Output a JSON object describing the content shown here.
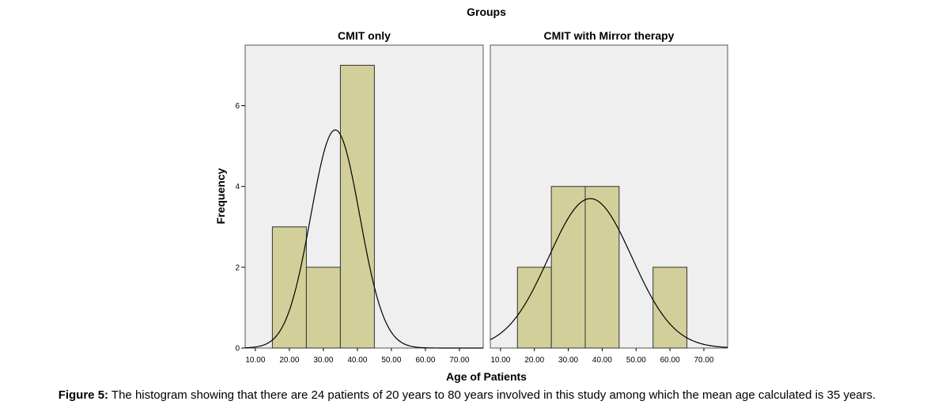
{
  "chart_data": {
    "type": "bar",
    "title": "Groups",
    "xlabel": "Age of Patients",
    "ylabel": "Frequency",
    "xlim": [
      7,
      77
    ],
    "ylim": [
      0,
      7.5
    ],
    "x_ticks": [
      "10.00",
      "20.00",
      "30.00",
      "40.00",
      "50.00",
      "60.00",
      "70.00"
    ],
    "y_ticks": [
      "0",
      "2",
      "4",
      "6"
    ],
    "bin_width": 10,
    "colors": {
      "bar_fill": "#d3cf9a",
      "bar_stroke": "#333333",
      "panel_bg": "#efefef",
      "curve": "#000000"
    },
    "panels": [
      {
        "name": "CMIT only",
        "bins": [
          {
            "start": 15,
            "end": 25,
            "count": 3
          },
          {
            "start": 25,
            "end": 35,
            "count": 2
          },
          {
            "start": 35,
            "end": 45,
            "count": 7
          }
        ],
        "normal_curve": {
          "mean": 33.5,
          "sd": 7.2,
          "peak": 5.4
        }
      },
      {
        "name": "CMIT with Mirror therapy",
        "bins": [
          {
            "start": 15,
            "end": 25,
            "count": 2
          },
          {
            "start": 25,
            "end": 35,
            "count": 4
          },
          {
            "start": 35,
            "end": 45,
            "count": 4
          },
          {
            "start": 55,
            "end": 65,
            "count": 2
          }
        ],
        "normal_curve": {
          "mean": 36.5,
          "sd": 12.3,
          "peak": 3.7
        }
      }
    ]
  },
  "caption": {
    "label": "Figure 5:",
    "text": " The histogram showing that there are 24 patients of 20 years to 80 years involved in this study among which the mean age calculated is 35 years."
  }
}
